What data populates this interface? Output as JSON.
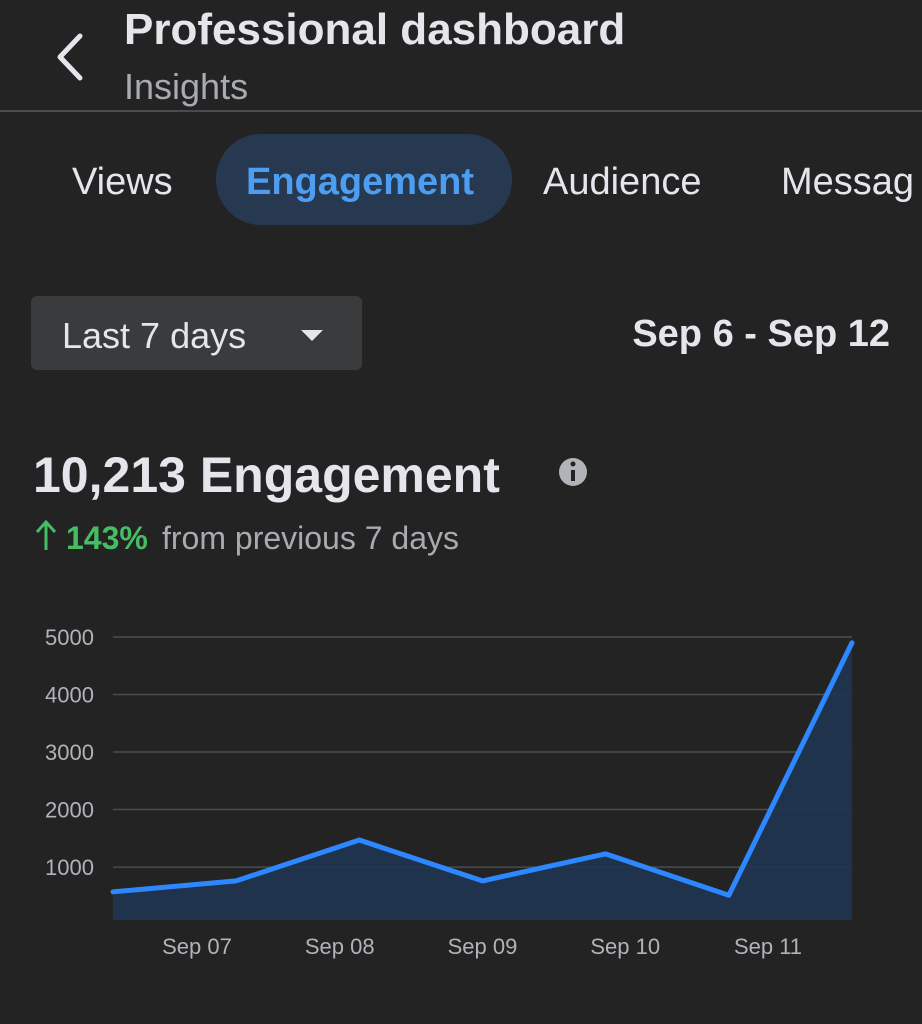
{
  "header": {
    "title": "Professional dashboard",
    "subtitle": "Insights"
  },
  "tabs": [
    "Views",
    "Engagement",
    "Audience",
    "Messag"
  ],
  "filter": {
    "period": "Last 7 days",
    "date_range": "Sep 6 - Sep 12"
  },
  "summary": {
    "metric": "10,213 Engagement",
    "change": "143%",
    "comparison": "from previous 7 days"
  },
  "chart_data": {
    "type": "line",
    "x_labels": [
      "Sep 07",
      "Sep 08",
      "Sep 09",
      "Sep 10",
      "Sep 11"
    ],
    "series": [
      {
        "name": "Engagement",
        "color": "#2d88ff",
        "values": [
          570,
          760,
          1470,
          760,
          1230,
          510,
          4900
        ]
      }
    ],
    "ylim": [
      80,
      5000
    ],
    "yticks": [
      1000,
      2000,
      3000,
      4000,
      5000
    ],
    "grid": true
  }
}
